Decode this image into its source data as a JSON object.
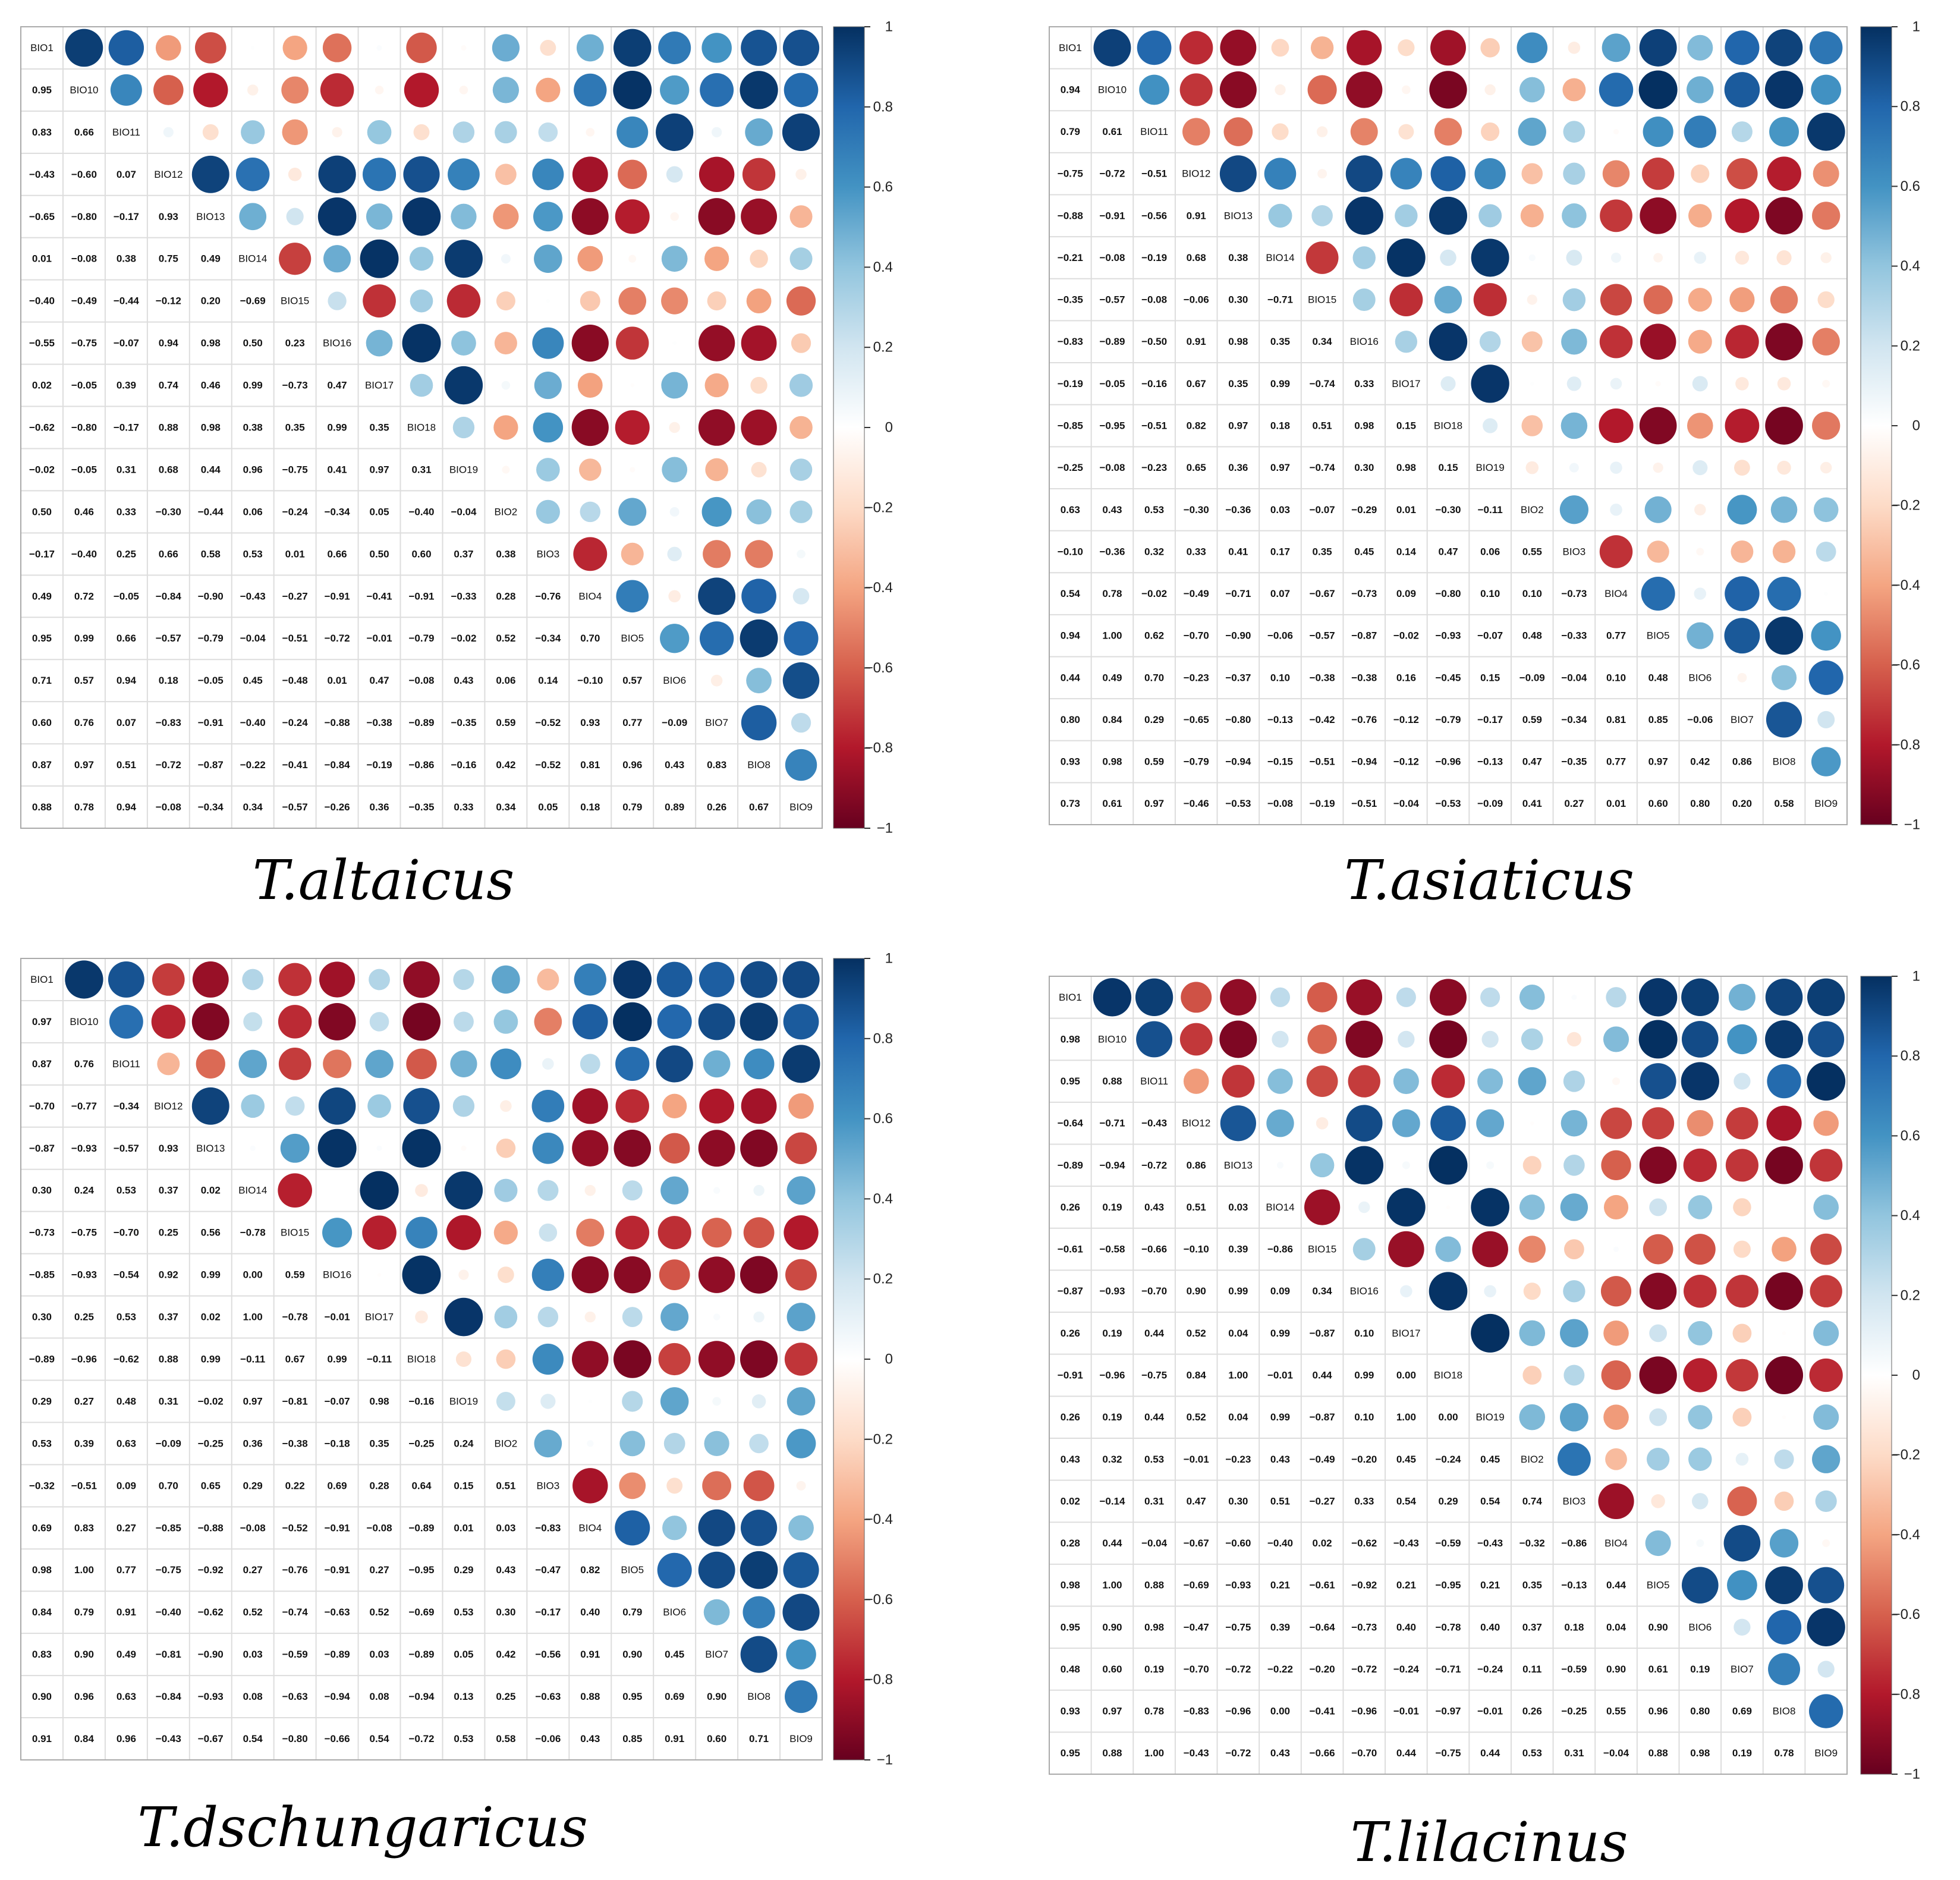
{
  "colors": {
    "neg": "#67001F",
    "mid": "#FFFFFF",
    "pos": "#053061",
    "grid": "#DDDDDD",
    "border": "#AAAAAA"
  },
  "chart_data": [
    {
      "type": "heatmap",
      "title": "T.altaicus",
      "variables": [
        "BIO1",
        "BIO10",
        "BIO11",
        "BIO12",
        "BIO13",
        "BIO14",
        "BIO15",
        "BIO16",
        "BIO17",
        "BIO18",
        "BIO19",
        "BIO2",
        "BIO3",
        "BIO4",
        "BIO5",
        "BIO6",
        "BIO7",
        "BIO8",
        "BIO9"
      ],
      "lower": [
        [],
        [
          0.95
        ],
        [
          0.83,
          0.66
        ],
        [
          -0.43,
          -0.6,
          0.07
        ],
        [
          -0.65,
          -0.8,
          -0.17,
          0.93
        ],
        [
          0.01,
          -0.08,
          0.38,
          0.75,
          0.49
        ],
        [
          -0.4,
          -0.49,
          -0.44,
          -0.12,
          0.2,
          -0.69
        ],
        [
          -0.55,
          -0.75,
          -0.07,
          0.94,
          0.98,
          0.5,
          0.23
        ],
        [
          0.02,
          -0.05,
          0.39,
          0.74,
          0.46,
          0.99,
          -0.73,
          0.47
        ],
        [
          -0.62,
          -0.8,
          -0.17,
          0.88,
          0.98,
          0.38,
          0.35,
          0.99,
          0.35
        ],
        [
          -0.02,
          -0.05,
          0.31,
          0.68,
          0.44,
          0.96,
          -0.75,
          0.41,
          0.97,
          0.31
        ],
        [
          0.5,
          0.46,
          0.33,
          -0.3,
          -0.44,
          0.06,
          -0.24,
          -0.34,
          0.05,
          -0.4,
          -0.04
        ],
        [
          -0.17,
          -0.4,
          0.25,
          0.66,
          0.58,
          0.53,
          0.01,
          0.66,
          0.5,
          0.6,
          0.37,
          0.38
        ],
        [
          0.49,
          0.72,
          -0.05,
          -0.84,
          -0.9,
          -0.43,
          -0.27,
          -0.91,
          -0.41,
          -0.91,
          -0.33,
          0.28,
          -0.76
        ],
        [
          0.95,
          0.99,
          0.66,
          -0.57,
          -0.79,
          -0.04,
          -0.51,
          -0.72,
          -0.01,
          -0.79,
          -0.02,
          0.52,
          -0.34,
          0.7
        ],
        [
          0.71,
          0.57,
          0.94,
          0.18,
          -0.05,
          0.45,
          -0.48,
          0.01,
          0.47,
          -0.08,
          0.43,
          0.06,
          0.14,
          -0.1,
          0.57
        ],
        [
          0.6,
          0.76,
          0.07,
          -0.83,
          -0.91,
          -0.4,
          -0.24,
          -0.88,
          -0.38,
          -0.89,
          -0.35,
          0.59,
          -0.52,
          0.93,
          0.77,
          -0.09
        ],
        [
          0.87,
          0.97,
          0.51,
          -0.72,
          -0.87,
          -0.22,
          -0.41,
          -0.84,
          -0.19,
          -0.86,
          -0.16,
          0.42,
          -0.52,
          0.81,
          0.96,
          0.43,
          0.83
        ],
        [
          0.88,
          0.78,
          0.94,
          -0.08,
          -0.34,
          0.34,
          -0.57,
          -0.26,
          0.36,
          -0.35,
          0.33,
          0.34,
          0.05,
          0.18,
          0.79,
          0.89,
          0.26,
          0.67
        ]
      ],
      "colorbar_ticks": [
        "1",
        "0.8",
        "0.6",
        "0.4",
        "0.2",
        "0",
        "−0.2",
        "−0.4",
        "−0.6",
        "−0.8",
        "−1"
      ]
    },
    {
      "type": "heatmap",
      "title": "T.asiaticus",
      "variables": [
        "BIO1",
        "BIO10",
        "BIO11",
        "BIO12",
        "BIO13",
        "BIO14",
        "BIO15",
        "BIO16",
        "BIO17",
        "BIO18",
        "BIO19",
        "BIO2",
        "BIO3",
        "BIO4",
        "BIO5",
        "BIO6",
        "BIO7",
        "BIO8",
        "BIO9"
      ],
      "lower": [
        [],
        [
          0.94
        ],
        [
          0.79,
          0.61
        ],
        [
          -0.75,
          -0.72,
          -0.51
        ],
        [
          -0.88,
          -0.91,
          -0.56,
          0.91
        ],
        [
          -0.21,
          -0.08,
          -0.19,
          0.68,
          0.38
        ],
        [
          -0.35,
          -0.57,
          -0.08,
          -0.06,
          0.3,
          -0.71
        ],
        [
          -0.83,
          -0.89,
          -0.5,
          0.91,
          0.98,
          0.35,
          0.34
        ],
        [
          -0.19,
          -0.05,
          -0.16,
          0.67,
          0.35,
          0.99,
          -0.74,
          0.33
        ],
        [
          -0.85,
          -0.95,
          -0.51,
          0.82,
          0.97,
          0.18,
          0.51,
          0.98,
          0.15
        ],
        [
          -0.25,
          -0.08,
          -0.23,
          0.65,
          0.36,
          0.97,
          -0.74,
          0.3,
          0.98,
          0.15
        ],
        [
          0.63,
          0.43,
          0.53,
          -0.3,
          -0.36,
          0.03,
          -0.07,
          -0.29,
          0.01,
          -0.3,
          -0.11
        ],
        [
          -0.1,
          -0.36,
          0.32,
          0.33,
          0.41,
          0.17,
          0.35,
          0.45,
          0.14,
          0.47,
          0.06,
          0.55
        ],
        [
          0.54,
          0.78,
          -0.02,
          -0.49,
          -0.71,
          0.07,
          -0.67,
          -0.73,
          0.09,
          -0.8,
          0.1,
          0.1,
          -0.73
        ],
        [
          0.94,
          1.0,
          0.62,
          -0.7,
          -0.9,
          -0.06,
          -0.57,
          -0.87,
          -0.02,
          -0.93,
          -0.07,
          0.48,
          -0.33,
          0.77
        ],
        [
          0.44,
          0.49,
          0.7,
          -0.23,
          -0.37,
          0.1,
          -0.38,
          -0.38,
          0.16,
          -0.45,
          0.15,
          -0.09,
          -0.04,
          0.1,
          0.48
        ],
        [
          0.8,
          0.84,
          0.29,
          -0.65,
          -0.8,
          -0.13,
          -0.42,
          -0.76,
          -0.12,
          -0.79,
          -0.17,
          0.59,
          -0.34,
          0.81,
          0.85,
          -0.06
        ],
        [
          0.93,
          0.98,
          0.59,
          -0.79,
          -0.94,
          -0.15,
          -0.51,
          -0.94,
          -0.12,
          -0.96,
          -0.13,
          0.47,
          -0.35,
          0.77,
          0.97,
          0.42,
          0.86
        ],
        [
          0.73,
          0.61,
          0.97,
          -0.46,
          -0.53,
          -0.08,
          -0.19,
          -0.51,
          -0.04,
          -0.53,
          -0.09,
          0.41,
          0.27,
          0.01,
          0.6,
          0.8,
          0.2,
          0.58
        ]
      ],
      "colorbar_ticks": [
        "1",
        "0.8",
        "0.6",
        "0.4",
        "0.2",
        "0",
        "−0.2",
        "−0.4",
        "−0.6",
        "−0.8",
        "−1"
      ]
    },
    {
      "type": "heatmap",
      "title": "T.dschungaricus",
      "variables": [
        "BIO1",
        "BIO10",
        "BIO11",
        "BIO12",
        "BIO13",
        "BIO14",
        "BIO15",
        "BIO16",
        "BIO17",
        "BIO18",
        "BIO19",
        "BIO2",
        "BIO3",
        "BIO4",
        "BIO5",
        "BIO6",
        "BIO7",
        "BIO8",
        "BIO9"
      ],
      "lower": [
        [],
        [
          0.97
        ],
        [
          0.87,
          0.76
        ],
        [
          -0.7,
          -0.77,
          -0.34
        ],
        [
          -0.87,
          -0.93,
          -0.57,
          0.93
        ],
        [
          0.3,
          0.24,
          0.53,
          0.37,
          0.02
        ],
        [
          -0.73,
          -0.75,
          -0.7,
          0.25,
          0.56,
          -0.78
        ],
        [
          -0.85,
          -0.93,
          -0.54,
          0.92,
          0.99,
          0.0,
          0.59
        ],
        [
          0.3,
          0.25,
          0.53,
          0.37,
          0.02,
          1.0,
          -0.78,
          -0.01
        ],
        [
          -0.89,
          -0.96,
          -0.62,
          0.88,
          0.99,
          -0.11,
          0.67,
          0.99,
          -0.11
        ],
        [
          0.29,
          0.27,
          0.48,
          0.31,
          -0.02,
          0.97,
          -0.81,
          -0.07,
          0.98,
          -0.16
        ],
        [
          0.53,
          0.39,
          0.63,
          -0.09,
          -0.25,
          0.36,
          -0.38,
          -0.18,
          0.35,
          -0.25,
          0.24
        ],
        [
          -0.32,
          -0.51,
          0.09,
          0.7,
          0.65,
          0.29,
          0.22,
          0.69,
          0.28,
          0.64,
          0.15,
          0.51
        ],
        [
          0.69,
          0.83,
          0.27,
          -0.85,
          -0.88,
          -0.08,
          -0.52,
          -0.91,
          -0.08,
          -0.89,
          0.01,
          0.03,
          -0.83
        ],
        [
          0.98,
          1.0,
          0.77,
          -0.75,
          -0.92,
          0.27,
          -0.76,
          -0.91,
          0.27,
          -0.95,
          0.29,
          0.43,
          -0.47,
          0.82
        ],
        [
          0.84,
          0.79,
          0.91,
          -0.4,
          -0.62,
          0.52,
          -0.74,
          -0.63,
          0.52,
          -0.69,
          0.53,
          0.3,
          -0.17,
          0.4,
          0.79
        ],
        [
          0.83,
          0.9,
          0.49,
          -0.81,
          -0.9,
          0.03,
          -0.59,
          -0.89,
          0.03,
          -0.89,
          0.05,
          0.42,
          -0.56,
          0.91,
          0.9,
          0.45
        ],
        [
          0.9,
          0.96,
          0.63,
          -0.84,
          -0.93,
          0.08,
          -0.63,
          -0.94,
          0.08,
          -0.94,
          0.13,
          0.25,
          -0.63,
          0.88,
          0.95,
          0.69,
          0.9
        ],
        [
          0.91,
          0.84,
          0.96,
          -0.43,
          -0.67,
          0.54,
          -0.8,
          -0.66,
          0.54,
          -0.72,
          0.53,
          0.58,
          -0.06,
          0.43,
          0.85,
          0.91,
          0.6,
          0.71
        ]
      ],
      "colorbar_ticks": [
        "1",
        "0.8",
        "0.6",
        "0.4",
        "0.2",
        "0",
        "−0.2",
        "−0.4",
        "−0.6",
        "−0.8",
        "−1"
      ]
    },
    {
      "type": "heatmap",
      "title": "T.lilacinus",
      "variables": [
        "BIO1",
        "BIO10",
        "BIO11",
        "BIO12",
        "BIO13",
        "BIO14",
        "BIO15",
        "BIO16",
        "BIO17",
        "BIO18",
        "BIO19",
        "BIO2",
        "BIO3",
        "BIO4",
        "BIO5",
        "BIO6",
        "BIO7",
        "BIO8",
        "BIO9"
      ],
      "lower": [
        [],
        [
          0.98
        ],
        [
          0.95,
          0.88
        ],
        [
          -0.64,
          -0.71,
          -0.43
        ],
        [
          -0.89,
          -0.94,
          -0.72,
          0.86
        ],
        [
          0.26,
          0.19,
          0.43,
          0.51,
          0.03
        ],
        [
          -0.61,
          -0.58,
          -0.66,
          -0.1,
          0.39,
          -0.86
        ],
        [
          -0.87,
          -0.93,
          -0.7,
          0.9,
          0.99,
          0.09,
          0.34
        ],
        [
          0.26,
          0.19,
          0.44,
          0.52,
          0.04,
          0.99,
          -0.87,
          0.1
        ],
        [
          -0.91,
          -0.96,
          -0.75,
          0.84,
          1.0,
          -0.01,
          0.44,
          0.99,
          0.0
        ],
        [
          0.26,
          0.19,
          0.44,
          0.52,
          0.04,
          0.99,
          -0.87,
          0.1,
          1.0,
          0.0
        ],
        [
          0.43,
          0.32,
          0.53,
          -0.01,
          -0.23,
          0.43,
          -0.49,
          -0.2,
          0.45,
          -0.24,
          0.45
        ],
        [
          0.02,
          -0.14,
          0.31,
          0.47,
          0.3,
          0.51,
          -0.27,
          0.33,
          0.54,
          0.29,
          0.54,
          0.74
        ],
        [
          0.28,
          0.44,
          -0.04,
          -0.67,
          -0.6,
          -0.4,
          0.02,
          -0.62,
          -0.43,
          -0.59,
          -0.43,
          -0.32,
          -0.86
        ],
        [
          0.98,
          1.0,
          0.88,
          -0.69,
          -0.93,
          0.21,
          -0.61,
          -0.92,
          0.21,
          -0.95,
          0.21,
          0.35,
          -0.13,
          0.44
        ],
        [
          0.95,
          0.9,
          0.98,
          -0.47,
          -0.75,
          0.39,
          -0.64,
          -0.73,
          0.4,
          -0.78,
          0.4,
          0.37,
          0.18,
          0.04,
          0.9
        ],
        [
          0.48,
          0.6,
          0.19,
          -0.7,
          -0.72,
          -0.22,
          -0.2,
          -0.72,
          -0.24,
          -0.71,
          -0.24,
          0.11,
          -0.59,
          0.9,
          0.61,
          0.19
        ],
        [
          0.93,
          0.97,
          0.78,
          -0.83,
          -0.96,
          0.0,
          -0.41,
          -0.96,
          -0.01,
          -0.97,
          -0.01,
          0.26,
          -0.25,
          0.55,
          0.96,
          0.8,
          0.69
        ],
        [
          0.95,
          0.88,
          1.0,
          -0.43,
          -0.72,
          0.43,
          -0.66,
          -0.7,
          0.44,
          -0.75,
          0.44,
          0.53,
          0.31,
          -0.04,
          0.88,
          0.98,
          0.19,
          0.78
        ]
      ],
      "colorbar_ticks": [
        "1",
        "0.8",
        "0.6",
        "0.4",
        "0.2",
        "0",
        "−0.2",
        "−0.4",
        "−0.6",
        "−0.8",
        "−1"
      ]
    }
  ]
}
